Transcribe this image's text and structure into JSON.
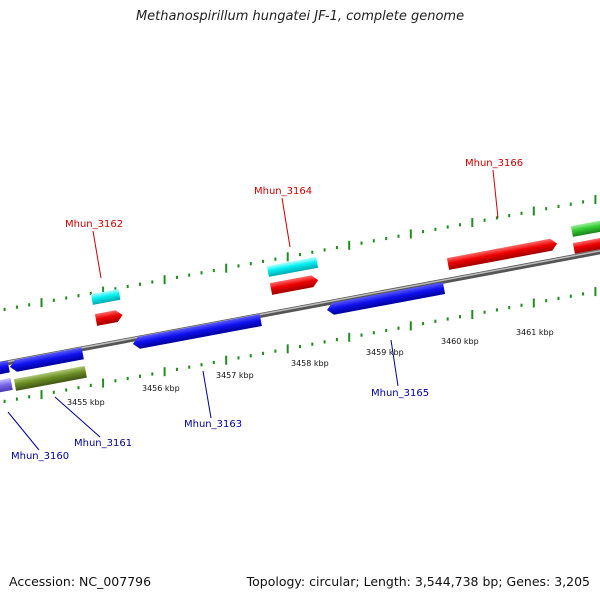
{
  "title": "Methanospirillum hungatei JF-1, complete genome",
  "footer": {
    "accession": "Accession: NC_007796",
    "topology": "Topology: circular; Length: 3,544,738 bp; Genes: 3,205"
  },
  "colors": {
    "forward_label": "#cc0000",
    "reverse_label": "#000099",
    "backbone": "#888888",
    "ticks": "#228b22"
  },
  "kbp_labels": [
    "3455 kbp",
    "3456 kbp",
    "3457 kbp",
    "3458 kbp",
    "3459 kbp",
    "3460 kbp",
    "3461 kbp"
  ],
  "gene_labels": [
    {
      "id": "Mhun_3162",
      "label": "Mhun_3162",
      "strand": "forward"
    },
    {
      "id": "Mhun_3164",
      "label": "Mhun_3164",
      "strand": "forward"
    },
    {
      "id": "Mhun_3166",
      "label": "Mhun_3166",
      "strand": "forward"
    },
    {
      "id": "Mhun_3160",
      "label": "Mhun_3160",
      "strand": "reverse"
    },
    {
      "id": "Mhun_3161",
      "label": "Mhun_3161",
      "strand": "reverse"
    },
    {
      "id": "Mhun_3163",
      "label": "Mhun_3163",
      "strand": "reverse"
    },
    {
      "id": "Mhun_3165",
      "label": "Mhun_3165",
      "strand": "reverse"
    }
  ]
}
